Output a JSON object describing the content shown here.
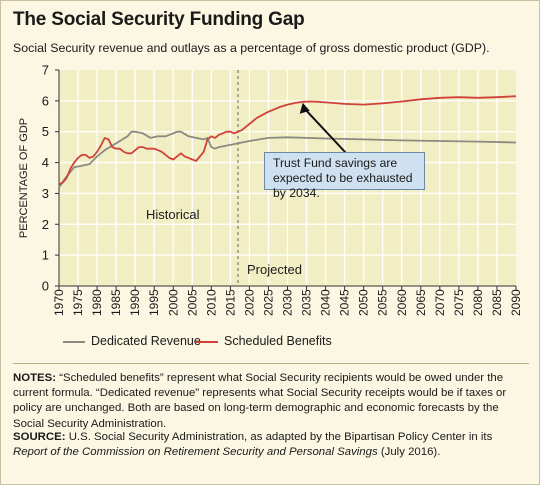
{
  "title": "The Social Security Funding Gap",
  "subtitle": "Social Security revenue and outlays as a percentage of gross domestic product (GDP).",
  "legend": [
    {
      "label": "Dedicated Revenue",
      "color": "#8a8a80"
    },
    {
      "label": "Scheduled Benefits",
      "color": "#d0413a"
    }
  ],
  "annotations": {
    "callout": "Trust Fund savings are expected to be exhausted by 2034.",
    "historical": "Historical",
    "projected": "Projected"
  },
  "notes": {
    "label": "NOTES:",
    "text": "“Scheduled benefits” represent what Social Security recipients would be owed under the current formula. “Dedicated revenue” represents what Social Security receipts would be if taxes or policy are unchanged. Both are based on long-term demographic and economic forecasts by the Social Security Administration."
  },
  "source": {
    "label": "SOURCE:",
    "pre": "U.S. Social Security Administration, as adapted by the Bipartisan Policy Center in its",
    "italic1": "Report of the Commission on  Retirement Security and Personal Savings",
    "post": "(July 2016)."
  },
  "colors": {
    "plot_bg": "#f2eec4",
    "grid": "#ffffff",
    "revenue": "#8a8a80",
    "benefits": "#d0413a",
    "callout_bg": "#cfe0f0"
  },
  "chart_data": {
    "type": "line",
    "title": "The Social Security Funding Gap",
    "ylabel": "PERCENTAGE OF GDP",
    "xlabel": "",
    "xlim": [
      1970,
      2090
    ],
    "ylim": [
      0,
      7
    ],
    "xticks": [
      1970,
      1975,
      1980,
      1985,
      1990,
      1995,
      2000,
      2005,
      2010,
      2015,
      2020,
      2025,
      2030,
      2035,
      2040,
      2045,
      2050,
      2055,
      2060,
      2065,
      2070,
      2075,
      2080,
      2085,
      2090
    ],
    "yticks": [
      0,
      1,
      2,
      3,
      4,
      5,
      6,
      7
    ],
    "grid": true,
    "divider_year": 2017,
    "callout_point": {
      "x": 2034,
      "y": 5.97
    },
    "series": [
      {
        "name": "Dedicated Revenue",
        "x": [
          1970,
          1972,
          1974,
          1976,
          1978,
          1980,
          1982,
          1984,
          1986,
          1988,
          1989,
          1990,
          1992,
          1994,
          1996,
          1998,
          2000,
          2001,
          2002,
          2004,
          2006,
          2008,
          2009,
          2010,
          2011,
          2012,
          2014,
          2016,
          2018,
          2020,
          2025,
          2030,
          2035,
          2040,
          2050,
          2060,
          2070,
          2080,
          2090
        ],
        "y": [
          3.2,
          3.55,
          3.85,
          3.9,
          3.95,
          4.2,
          4.4,
          4.55,
          4.7,
          4.85,
          5.0,
          5.0,
          4.95,
          4.8,
          4.85,
          4.85,
          4.95,
          5.0,
          5.0,
          4.85,
          4.8,
          4.75,
          4.8,
          4.5,
          4.45,
          4.5,
          4.55,
          4.6,
          4.65,
          4.7,
          4.8,
          4.82,
          4.8,
          4.78,
          4.75,
          4.72,
          4.7,
          4.68,
          4.65
        ]
      },
      {
        "name": "Scheduled Benefits",
        "x": [
          1970,
          1971,
          1972,
          1973,
          1974,
          1975,
          1976,
          1977,
          1978,
          1979,
          1980,
          1981,
          1982,
          1983,
          1984,
          1985,
          1986,
          1987,
          1988,
          1989,
          1990,
          1991,
          1992,
          1993,
          1994,
          1995,
          1996,
          1997,
          1998,
          1999,
          2000,
          2001,
          2002,
          2003,
          2004,
          2005,
          2006,
          2007,
          2008,
          2009,
          2010,
          2011,
          2012,
          2013,
          2014,
          2015,
          2016,
          2017,
          2018,
          2019,
          2020,
          2022,
          2025,
          2028,
          2030,
          2032,
          2034,
          2036,
          2038,
          2040,
          2045,
          2050,
          2055,
          2060,
          2065,
          2070,
          2075,
          2080,
          2085,
          2090
        ],
        "y": [
          3.3,
          3.35,
          3.5,
          3.8,
          4.0,
          4.15,
          4.25,
          4.25,
          4.15,
          4.2,
          4.35,
          4.55,
          4.8,
          4.75,
          4.5,
          4.45,
          4.45,
          4.35,
          4.3,
          4.3,
          4.4,
          4.5,
          4.5,
          4.45,
          4.45,
          4.45,
          4.4,
          4.35,
          4.25,
          4.15,
          4.1,
          4.2,
          4.3,
          4.2,
          4.15,
          4.1,
          4.05,
          4.2,
          4.35,
          4.75,
          4.85,
          4.8,
          4.9,
          4.95,
          5.0,
          5.0,
          4.95,
          5.0,
          5.05,
          5.15,
          5.25,
          5.45,
          5.65,
          5.8,
          5.88,
          5.93,
          5.97,
          5.98,
          5.97,
          5.95,
          5.9,
          5.88,
          5.92,
          5.98,
          6.05,
          6.1,
          6.12,
          6.1,
          6.12,
          6.15
        ]
      }
    ]
  }
}
